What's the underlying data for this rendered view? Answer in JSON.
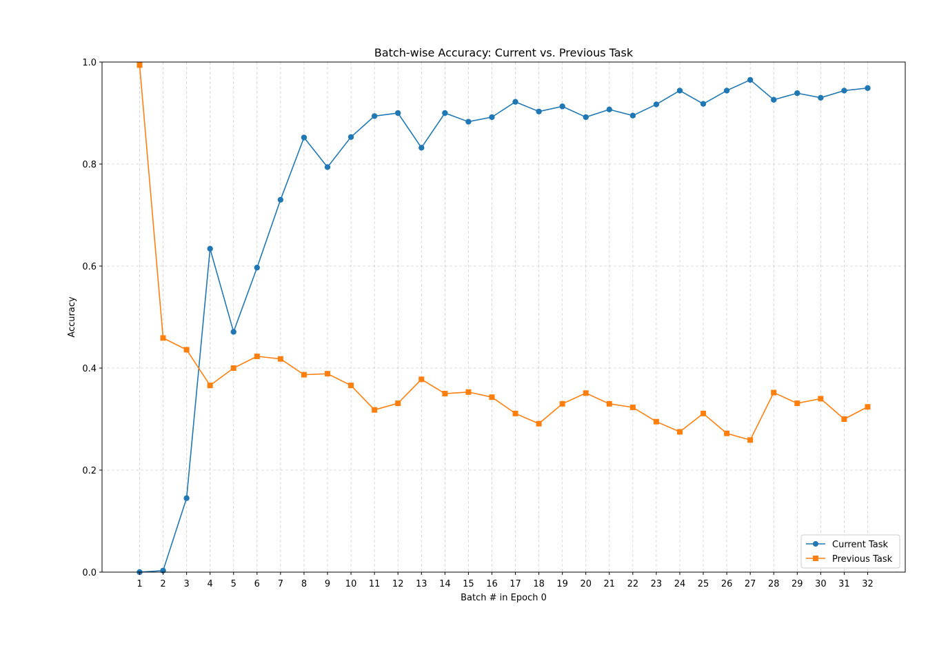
{
  "chart_data": {
    "type": "line",
    "title": "Batch-wise Accuracy: Current vs. Previous Task",
    "xlabel": "Batch # in Epoch 0",
    "ylabel": "Accuracy",
    "x": [
      1,
      2,
      3,
      4,
      5,
      6,
      7,
      8,
      9,
      10,
      11,
      12,
      13,
      14,
      15,
      16,
      17,
      18,
      19,
      20,
      21,
      22,
      23,
      24,
      25,
      26,
      27,
      28,
      29,
      30,
      31,
      32
    ],
    "xlim": [
      -0.6,
      33.6
    ],
    "ylim": [
      0.0,
      1.0
    ],
    "yticks": [
      0.0,
      0.2,
      0.4,
      0.6,
      0.8,
      1.0
    ],
    "ytick_labels": [
      "0.0",
      "0.2",
      "0.4",
      "0.6",
      "0.8",
      "1.0"
    ],
    "grid": true,
    "legend_position": "lower-right",
    "series": [
      {
        "name": "Current Task",
        "color": "#1f77b4",
        "marker": "circle",
        "values": [
          0.0,
          0.003,
          0.145,
          0.634,
          0.471,
          0.597,
          0.73,
          0.852,
          0.794,
          0.853,
          0.894,
          0.9,
          0.832,
          0.9,
          0.883,
          0.892,
          0.922,
          0.903,
          0.913,
          0.892,
          0.907,
          0.895,
          0.917,
          0.944,
          0.918,
          0.944,
          0.965,
          0.926,
          0.939,
          0.93,
          0.944,
          0.949
        ]
      },
      {
        "name": "Previous Task",
        "color": "#ff7f0e",
        "marker": "square",
        "values": [
          0.994,
          0.459,
          0.436,
          0.366,
          0.4,
          0.423,
          0.418,
          0.387,
          0.389,
          0.366,
          0.318,
          0.331,
          0.378,
          0.35,
          0.353,
          0.343,
          0.311,
          0.291,
          0.33,
          0.351,
          0.33,
          0.323,
          0.295,
          0.275,
          0.311,
          0.272,
          0.259,
          0.352,
          0.331,
          0.34,
          0.3,
          0.324
        ]
      }
    ]
  }
}
